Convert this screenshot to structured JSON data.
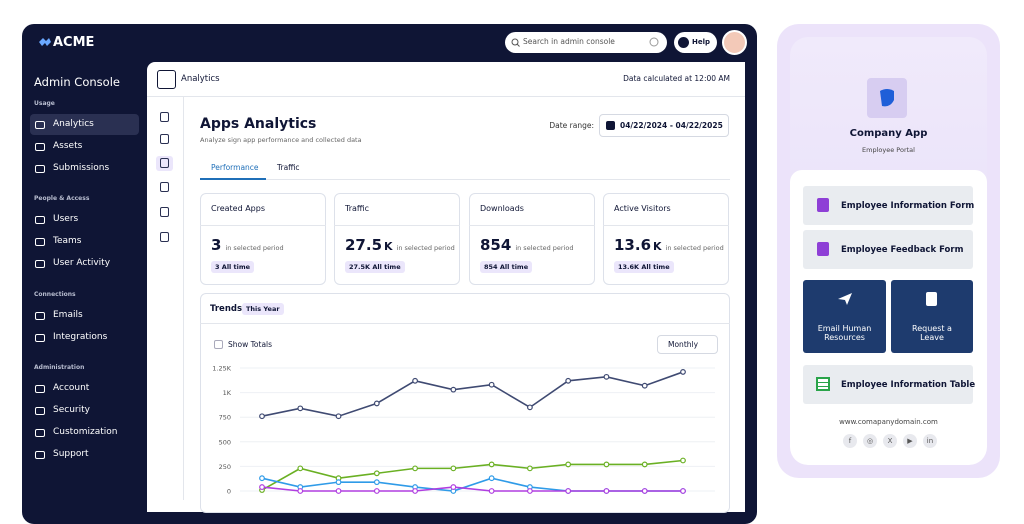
{
  "topbar": {
    "logo": "ACME",
    "search_placeholder": "Search in admin console",
    "help": "Help"
  },
  "sidebar": {
    "title": "Admin Console",
    "sections": [
      {
        "heading": "Usage",
        "items": [
          "Analytics",
          "Assets",
          "Submissions"
        ]
      },
      {
        "heading": "People & Access",
        "items": [
          "Users",
          "Teams",
          "User Activity"
        ]
      },
      {
        "heading": "Connections",
        "items": [
          "Emails",
          "Integrations"
        ]
      },
      {
        "heading": "Administration",
        "items": [
          "Account",
          "Security",
          "Customization",
          "Support"
        ]
      }
    ]
  },
  "header": {
    "title": "Analytics",
    "note": "Data calculated at 12:00 AM"
  },
  "page": {
    "title": "Apps Analytics",
    "subtitle": "Analyze sign app performance and collected data",
    "date_label": "Date range:",
    "date_value": "04/22/2024 - 04/22/2025",
    "tabs": [
      "Performance",
      "Traffic"
    ]
  },
  "cards": [
    {
      "title": "Created Apps",
      "value": "3",
      "unit": "",
      "period": "in selected period",
      "all_time": "3 All time"
    },
    {
      "title": "Traffic",
      "value": "27.5",
      "unit": "K",
      "period": "in selected period",
      "all_time": "27.5K All time"
    },
    {
      "title": "Downloads",
      "value": "854",
      "unit": "",
      "period": "in selected period",
      "all_time": "854 All time"
    },
    {
      "title": "Active Visitors",
      "value": "13.6",
      "unit": "K",
      "period": "in selected period",
      "all_time": "13.6K All time"
    }
  ],
  "trends": {
    "title": "Trends",
    "badge": "This Year",
    "toggle": "Show Totals",
    "interval": "Monthly"
  },
  "chart_data": {
    "type": "line",
    "categories": [
      null,
      null,
      null,
      null,
      null,
      null,
      null,
      null,
      null,
      null,
      null,
      null
    ],
    "series": [
      {
        "color": "#3f4a72",
        "values": [
          760,
          840,
          760,
          890,
          1120,
          1030,
          1080,
          850,
          1120,
          1160,
          1070,
          1210
        ]
      },
      {
        "color": "#6ab023",
        "values": [
          10,
          230,
          130,
          180,
          230,
          230,
          270,
          230,
          270,
          270,
          270,
          310
        ]
      },
      {
        "color": "#2f9be8",
        "values": [
          130,
          40,
          90,
          90,
          40,
          0,
          130,
          40,
          0,
          0,
          0,
          0
        ]
      },
      {
        "color": "#b03ee0",
        "values": [
          40,
          0,
          0,
          0,
          0,
          40,
          0,
          0,
          0,
          0,
          0,
          0
        ]
      }
    ],
    "ylim": [
      0,
      1250
    ],
    "yticks": [
      0,
      250,
      500,
      750,
      {
        "value": 1000,
        "label": "1K"
      },
      {
        "value": 1250,
        "label": "1.25K"
      }
    ],
    "grid": true
  },
  "phone": {
    "app_name": "Company App",
    "app_subtitle": "Employee Portal",
    "buttons": [
      "Employee Information Form",
      "Employee Feedback Form"
    ],
    "tiles": [
      "Email Human Resources",
      "Request a Leave"
    ],
    "table_button": "Employee Information Table",
    "url": "www.comapanydomain.com",
    "socials": [
      "f",
      "◎",
      "X",
      "▶",
      "in"
    ]
  }
}
